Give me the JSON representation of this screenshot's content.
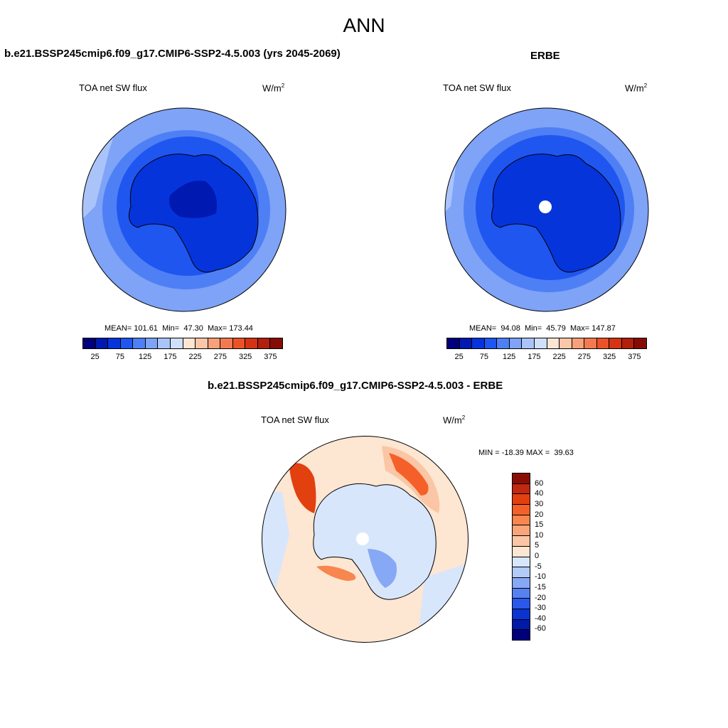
{
  "main_title": "ANN",
  "left_panel": {
    "title": "b.e21.BSSP245cmip6.f09_g17.CMIP6-SSP2-4.5.003 (yrs 2045-2069)",
    "subtitle": "TOA net SW flux",
    "units": "W/m",
    "units_sup": "2",
    "stats": {
      "mean_label": "MEAN=",
      "mean": "101.61",
      "min_label": "Min=",
      "min": "47.30",
      "max_label": "Max=",
      "max": "173.44"
    }
  },
  "right_panel": {
    "title": "ERBE",
    "subtitle": "TOA net SW flux",
    "units": "W/m",
    "units_sup": "2",
    "stats": {
      "mean_label": "MEAN=",
      "mean": "94.08",
      "min_label": "Min=",
      "min": "45.79",
      "max_label": "Max=",
      "max": "147.87"
    }
  },
  "diff_panel": {
    "title": "b.e21.BSSP245cmip6.f09_g17.CMIP6-SSP2-4.5.003 - ERBE",
    "subtitle": "TOA net SW flux",
    "units": "W/m",
    "units_sup": "2",
    "minmax": "MIN = -18.39 MAX =  39.63"
  },
  "chart_data": [
    {
      "type": "heatmap",
      "projection": "south polar stereographic",
      "title": "b.e21.BSSP245cmip6.f09_g17.CMIP6-SSP2-4.5.003 (yrs 2045-2069)",
      "variable": "TOA net SW flux",
      "units": "W/m2",
      "mean": 101.61,
      "min": 47.3,
      "max": 173.44,
      "colorbar": {
        "tick_labels": [
          "25",
          "75",
          "125",
          "175",
          "225",
          "275",
          "325",
          "375"
        ],
        "colors": [
          "#00007a",
          "#0019b0",
          "#0634db",
          "#1f56f0",
          "#4f7ff5",
          "#7ea3f7",
          "#aac4fa",
          "#d0e0fb",
          "#fde6d2",
          "#fbc7a8",
          "#f7a07a",
          "#f37a50",
          "#ec5228",
          "#d43413",
          "#b0200c",
          "#850c05"
        ]
      }
    },
    {
      "type": "heatmap",
      "projection": "south polar stereographic",
      "title": "ERBE",
      "variable": "TOA net SW flux",
      "units": "W/m2",
      "mean": 94.08,
      "min": 45.79,
      "max": 147.87,
      "colorbar": {
        "tick_labels": [
          "25",
          "75",
          "125",
          "175",
          "225",
          "275",
          "325",
          "375"
        ],
        "colors": [
          "#00007a",
          "#0019b0",
          "#0634db",
          "#1f56f0",
          "#4f7ff5",
          "#7ea3f7",
          "#aac4fa",
          "#d0e0fb",
          "#fde6d2",
          "#fbc7a8",
          "#f7a07a",
          "#f37a50",
          "#ec5228",
          "#d43413",
          "#b0200c",
          "#850c05"
        ]
      }
    },
    {
      "type": "heatmap",
      "projection": "south polar stereographic",
      "title": "b.e21.BSSP245cmip6.f09_g17.CMIP6-SSP2-4.5.003 - ERBE",
      "variable": "TOA net SW flux",
      "units": "W/m2",
      "min": -18.39,
      "max": 39.63,
      "colorbar": {
        "tick_labels": [
          "60",
          "40",
          "30",
          "20",
          "15",
          "10",
          "5",
          "0",
          "-5",
          "-10",
          "-15",
          "-20",
          "-30",
          "-40",
          "-60"
        ],
        "colors": [
          "#8a0c05",
          "#c02810",
          "#e3400f",
          "#f5602a",
          "#f7864f",
          "#f8a57a",
          "#fbc6a5",
          "#fde6d2",
          "#d8e6fb",
          "#b3cbf8",
          "#87a8f5",
          "#5682f1",
          "#2b58eb",
          "#0b33d2",
          "#021aa8",
          "#00007a"
        ]
      }
    }
  ]
}
